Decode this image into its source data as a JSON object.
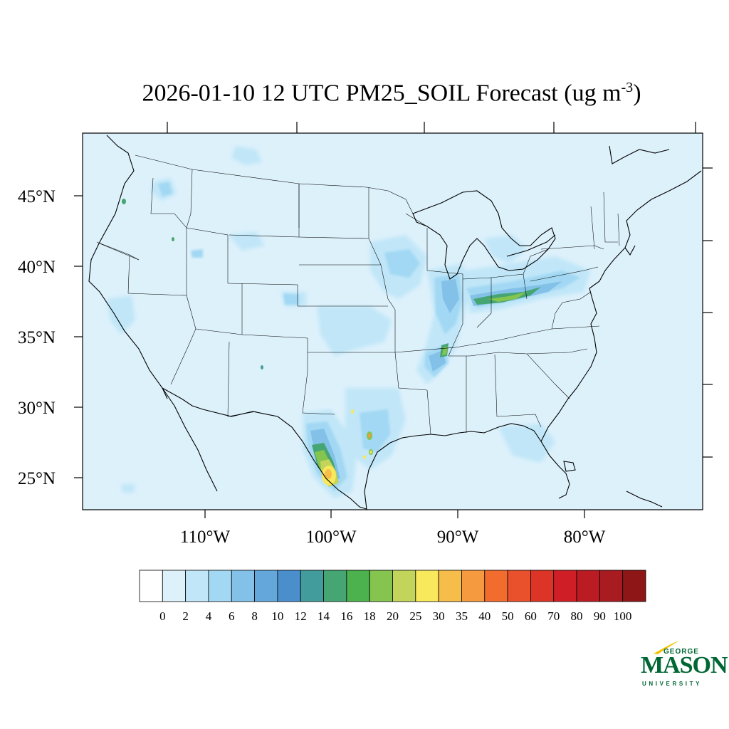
{
  "title": {
    "main": "2026-01-10 12 UTC PM25_SOIL Forecast (ug m",
    "exponent": "-3",
    "close": ")"
  },
  "map": {
    "background_color": "#ddf1fb",
    "latitude_labels": [
      "45°N",
      "40°N",
      "35°N",
      "30°N",
      "25°N"
    ],
    "longitude_labels": [
      "110°W",
      "100°W",
      "90°W",
      "80°W"
    ]
  },
  "colorbar": {
    "colors": [
      "#ffffff",
      "#ddf1fb",
      "#c0e6f8",
      "#a2d8f3",
      "#83c1e8",
      "#64a7da",
      "#4a8fcb",
      "#439c9c",
      "#45a673",
      "#4bb24d",
      "#84c44f",
      "#c3d45a",
      "#f7e85c",
      "#f6bd4a",
      "#f59a3e",
      "#f26c2e",
      "#e9502c",
      "#dc3426",
      "#d01e26",
      "#bb1b23",
      "#a71b21",
      "#8f1616"
    ],
    "labels": [
      "0",
      "2",
      "4",
      "6",
      "8",
      "10",
      "12",
      "14",
      "16",
      "18",
      "20",
      "25",
      "30",
      "35",
      "40",
      "50",
      "60",
      "70",
      "80",
      "90",
      "100"
    ]
  },
  "logo": {
    "line1": "GEORGE",
    "line2": "MASON",
    "line3": "UNIVERSITY",
    "color": "#006633",
    "accent": "#f2c200"
  }
}
